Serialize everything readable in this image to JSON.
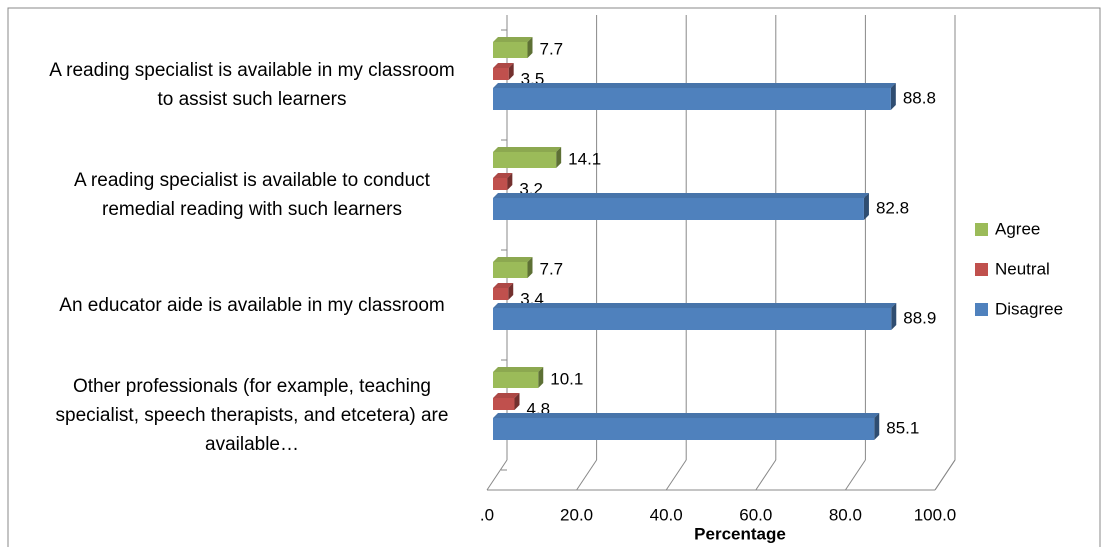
{
  "chart_data": {
    "type": "bar3d_horizontal",
    "categories": [
      "A reading specialist is available in my classroom to assist such learners",
      "A reading specialist is available to conduct remedial reading with such learners",
      "An educator aide is available in my classroom",
      "Other professionals (for example, teaching specialist, speech therapists, and etcetera) are available…"
    ],
    "series": [
      {
        "name": "Agree",
        "color": "#9bbb59",
        "values": [
          7.7,
          14.1,
          7.7,
          10.1
        ]
      },
      {
        "name": "Neutral",
        "color": "#c0504d",
        "values": [
          3.5,
          3.2,
          3.4,
          4.8
        ]
      },
      {
        "name": "Disagree",
        "color": "#4f81bd",
        "values": [
          88.8,
          82.8,
          88.9,
          85.1
        ]
      }
    ],
    "xlim": [
      0,
      100
    ],
    "xticks": [
      {
        "value": 0,
        "label": ".0"
      },
      {
        "value": 20,
        "label": "20.0"
      },
      {
        "value": 40,
        "label": "40.0"
      },
      {
        "value": 60,
        "label": "60.0"
      },
      {
        "value": 80,
        "label": "80.0"
      },
      {
        "value": 100,
        "label": "100.0"
      }
    ],
    "x_label": "Percentage",
    "grid": true,
    "legend": "right"
  }
}
